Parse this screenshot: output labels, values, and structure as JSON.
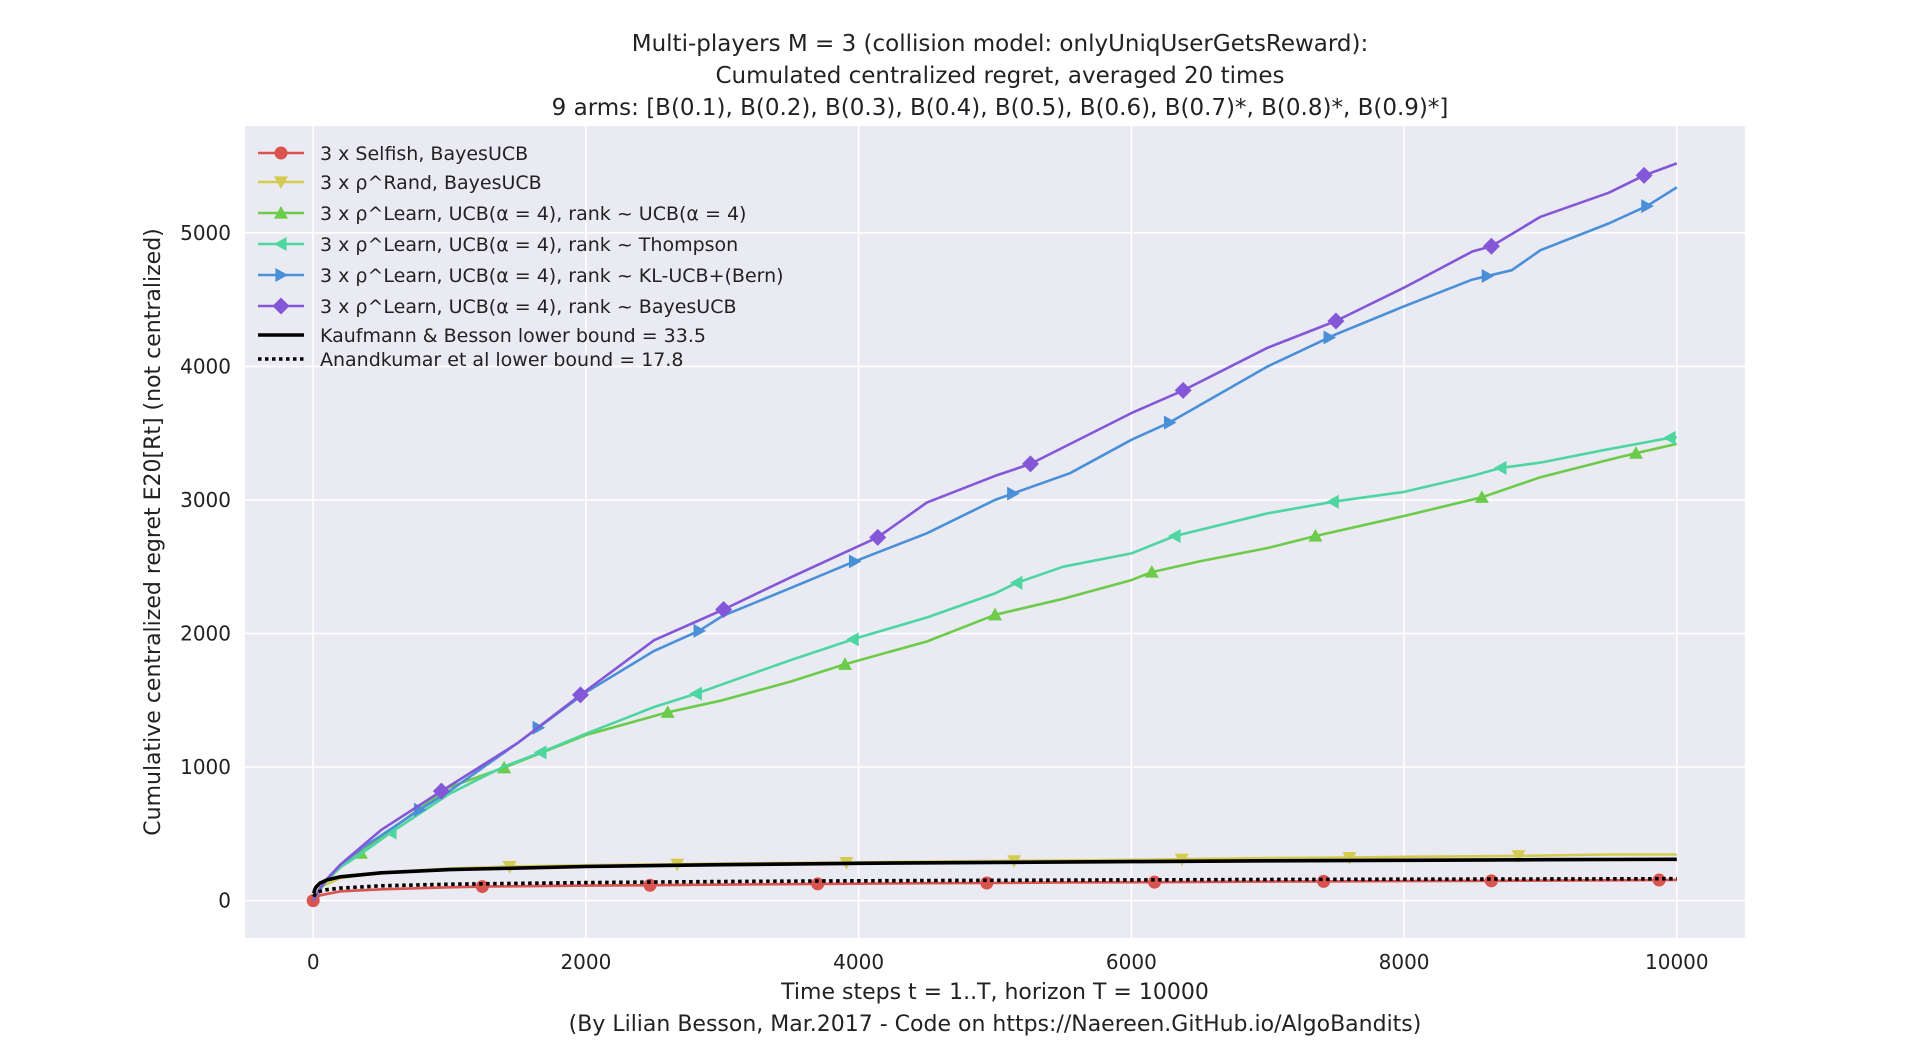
{
  "title": {
    "line1": "Multi-players M = 3 (collision model: onlyUniqUserGetsReward):",
    "line2": "Cumulated centralized regret, averaged 20 times",
    "line3": "9 arms: [B(0.1), B(0.2), B(0.3), B(0.4), B(0.5), B(0.6), B(0.7)*, B(0.8)*, B(0.9)*]"
  },
  "footer": "(By Lilian Besson, Mar.2017 - Code on https://Naereen.GitHub.io/AlgoBandits)",
  "chart_data": {
    "type": "line",
    "xlabel": "Time steps t = 1..T, horizon T = 10000",
    "ylabel": "Cumulative centralized regret E20[Rt] (not centralized)",
    "xlim": [
      -500,
      10500
    ],
    "ylim": [
      -280,
      5800
    ],
    "xticks": [
      0,
      2000,
      4000,
      6000,
      8000,
      10000
    ],
    "yticks": [
      0,
      1000,
      2000,
      3000,
      4000,
      5000
    ],
    "grid": true,
    "legend_position": "upper-left",
    "series": [
      {
        "name": "3 x Selfish, BayesUCB",
        "color": "#d9534f",
        "marker": "circle",
        "linestyle": "solid",
        "x": [
          0,
          50,
          200,
          500,
          1000,
          1240,
          2000,
          2470,
          3000,
          3700,
          4500,
          4940,
          5500,
          6170,
          7000,
          7410,
          8000,
          8640,
          9500,
          9870,
          10000
        ],
        "y": [
          0,
          40,
          70,
          85,
          100,
          105,
          112,
          115,
          120,
          125,
          130,
          132,
          136,
          138,
          142,
          144,
          146,
          148,
          152,
          154,
          155
        ],
        "markers_x": [
          0,
          1240,
          2470,
          3700,
          4940,
          6170,
          7410,
          8640,
          9870
        ]
      },
      {
        "name": "3 x ρ^Rand, BayesUCB",
        "color": "#d4cc50",
        "marker": "triangle-down",
        "linestyle": "solid",
        "x": [
          0,
          50,
          200,
          500,
          1000,
          1440,
          2000,
          2670,
          3000,
          3910,
          4500,
          5140,
          6000,
          6370,
          7000,
          7600,
          8000,
          8840,
          9500,
          10000
        ],
        "y": [
          0,
          100,
          170,
          210,
          240,
          255,
          265,
          272,
          278,
          285,
          292,
          298,
          305,
          310,
          318,
          322,
          328,
          335,
          345,
          345
        ],
        "markers_x": [
          1440,
          2670,
          3910,
          5140,
          6370,
          7600,
          8840
        ]
      },
      {
        "name": "3 x ρ^Learn, UCB(α = 4), rank ~ UCB(α = 4)",
        "color": "#6ccc4a",
        "marker": "triangle-up",
        "linestyle": "solid",
        "x": [
          0,
          50,
          100,
          200,
          350,
          500,
          1000,
          1400,
          2000,
          2600,
          3000,
          3500,
          3900,
          4500,
          5000,
          5500,
          6000,
          6150,
          6500,
          7000,
          7350,
          8000,
          8570,
          9000,
          9500,
          9700,
          10000
        ],
        "y": [
          0,
          80,
          150,
          250,
          355,
          480,
          850,
          995,
          1240,
          1410,
          1500,
          1640,
          1770,
          1940,
          2140,
          2260,
          2400,
          2460,
          2540,
          2640,
          2730,
          2880,
          3020,
          3170,
          3300,
          3350,
          3420
        ],
        "markers_x": [
          350,
          1400,
          2600,
          3900,
          5000,
          6150,
          7350,
          8570,
          9700
        ]
      },
      {
        "name": "3 x ρ^Learn, UCB(α = 4), rank ~ Thompson",
        "color": "#4dd6a0",
        "marker": "triangle-left",
        "linestyle": "solid",
        "x": [
          0,
          50,
          100,
          200,
          350,
          570,
          1000,
          1390,
          1670,
          2000,
          2500,
          2810,
          3000,
          3500,
          4000,
          4500,
          5000,
          5160,
          5500,
          6000,
          6320,
          7000,
          7500,
          8000,
          8500,
          8710,
          9000,
          9500,
          9950,
          10000
        ],
        "y": [
          0,
          80,
          150,
          250,
          350,
          510,
          800,
          1000,
          1110,
          1250,
          1450,
          1550,
          1620,
          1800,
          1970,
          2120,
          2300,
          2380,
          2500,
          2600,
          2730,
          2900,
          2990,
          3060,
          3180,
          3240,
          3280,
          3380,
          3465,
          3470
        ],
        "markers_x": [
          570,
          1670,
          2810,
          3960,
          5160,
          6320,
          7480,
          8710,
          9950
        ]
      },
      {
        "name": "3 x ρ^Learn, UCB(α = 4), rank ~ KL-UCB+(Bern)",
        "color": "#4a90d9",
        "marker": "triangle-right",
        "linestyle": "solid",
        "x": [
          0,
          50,
          100,
          200,
          400,
          780,
          1000,
          1500,
          2000,
          2500,
          2830,
          3000,
          3500,
          3970,
          4500,
          5000,
          5550,
          6000,
          6280,
          7000,
          7500,
          8000,
          8500,
          8790,
          9000,
          9500,
          9780,
          10000
        ],
        "y": [
          0,
          90,
          160,
          270,
          420,
          680,
          820,
          1180,
          1560,
          1870,
          2020,
          2130,
          2340,
          2540,
          2750,
          3000,
          3200,
          3450,
          3580,
          4000,
          4240,
          4450,
          4650,
          4720,
          4870,
          5070,
          5200,
          5340
        ],
        "markers_x": [
          780,
          1650,
          2830,
          3970,
          5130,
          6280,
          7450,
          8610,
          9780
        ]
      },
      {
        "name": "3 x ρ^Learn, UCB(α = 4), rank ~ BayesUCB",
        "color": "#8457d8",
        "marker": "diamond",
        "linestyle": "solid",
        "x": [
          0,
          50,
          100,
          200,
          500,
          940,
          1500,
          1960,
          2500,
          3010,
          3500,
          4140,
          4500,
          5000,
          5260,
          6000,
          6380,
          7000,
          7500,
          8000,
          8500,
          8640,
          9000,
          9500,
          9760,
          10000
        ],
        "y": [
          0,
          90,
          160,
          270,
          530,
          820,
          1180,
          1540,
          1950,
          2180,
          2420,
          2720,
          2980,
          3180,
          3270,
          3650,
          3820,
          4140,
          4340,
          4590,
          4860,
          4900,
          5120,
          5300,
          5430,
          5520
        ],
        "markers_x": [
          940,
          1960,
          3010,
          4140,
          5260,
          6380,
          7500,
          8640,
          9760
        ]
      },
      {
        "name": "Kaufmann & Besson lower bound = 33.5",
        "color": "#000000",
        "marker": "none",
        "linestyle": "solid",
        "x": [
          5,
          10,
          20,
          50,
          100,
          200,
          500,
          1000,
          2000,
          3000,
          4000,
          5000,
          6000,
          7000,
          8000,
          9000,
          10000
        ],
        "y": [
          54,
          77,
          100,
          131,
          154,
          178,
          208,
          232,
          255,
          269,
          279,
          286,
          292,
          298,
          302,
          306,
          309
        ]
      },
      {
        "name": "Anandkumar et al lower bound = 17.8",
        "color": "#000000",
        "marker": "none",
        "linestyle": "dotted",
        "x": [
          5,
          10,
          20,
          50,
          100,
          200,
          500,
          1000,
          2000,
          3000,
          4000,
          5000,
          6000,
          7000,
          8000,
          9000,
          10000
        ],
        "y": [
          29,
          41,
          53,
          70,
          82,
          94,
          111,
          123,
          135,
          143,
          148,
          152,
          155,
          158,
          160,
          162,
          164
        ]
      }
    ]
  }
}
